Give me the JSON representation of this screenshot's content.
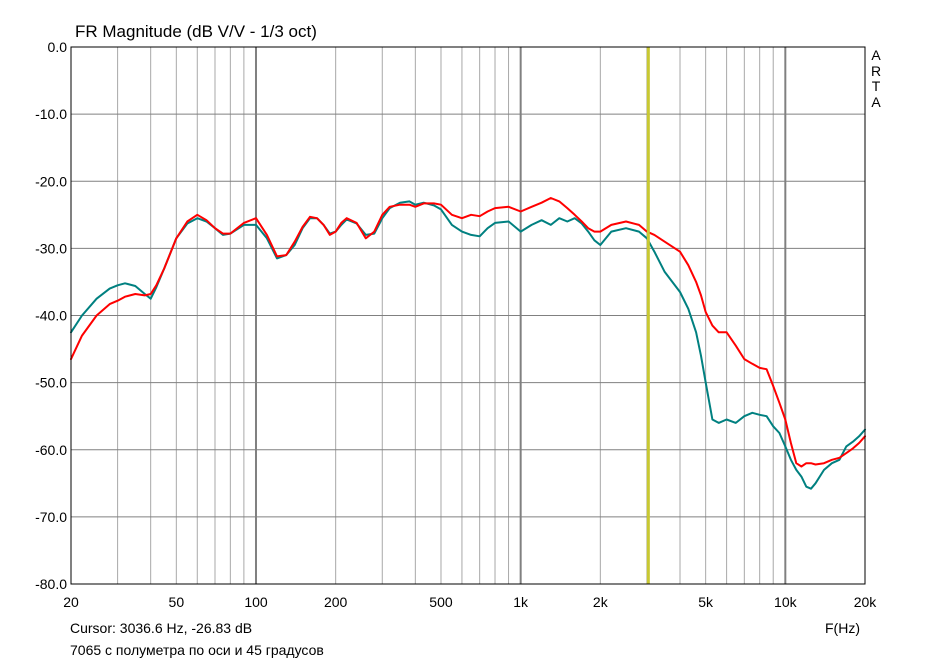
{
  "chart_data": {
    "type": "line",
    "title": "FR Magnitude (dB V/V - 1/3 oct)",
    "xlabel": "F(Hz)",
    "x_scale": "log",
    "xlim": [
      20,
      20000
    ],
    "ylim": [
      -80,
      0
    ],
    "grid": true,
    "x_tick_labels": [
      {
        "value": 20,
        "label": "20"
      },
      {
        "value": 50,
        "label": "50"
      },
      {
        "value": 100,
        "label": "100"
      },
      {
        "value": 200,
        "label": "200"
      },
      {
        "value": 500,
        "label": "500"
      },
      {
        "value": 1000,
        "label": "1k"
      },
      {
        "value": 2000,
        "label": "2k"
      },
      {
        "value": 5000,
        "label": "5k"
      },
      {
        "value": 10000,
        "label": "10k"
      },
      {
        "value": 20000,
        "label": "20k"
      }
    ],
    "y_tick_labels": [
      {
        "value": 0,
        "label": "0.0"
      },
      {
        "value": -10,
        "label": "-10.0"
      },
      {
        "value": -20,
        "label": "-20.0"
      },
      {
        "value": -30,
        "label": "-30.0"
      },
      {
        "value": -40,
        "label": "-40.0"
      },
      {
        "value": -50,
        "label": "-50.0"
      },
      {
        "value": -60,
        "label": "-60.0"
      },
      {
        "value": -70,
        "label": "-70.0"
      },
      {
        "value": -80,
        "label": "-80.0"
      }
    ],
    "cursor_x": 3036.6,
    "series": [
      {
        "color": "#008080",
        "x": [
          20,
          22,
          25,
          28,
          30,
          32,
          35,
          38,
          40,
          42,
          45,
          50,
          55,
          60,
          65,
          70,
          75,
          80,
          90,
          100,
          110,
          120,
          130,
          140,
          150,
          160,
          170,
          180,
          190,
          200,
          210,
          220,
          240,
          260,
          280,
          300,
          320,
          350,
          380,
          400,
          430,
          470,
          500,
          550,
          600,
          650,
          700,
          750,
          800,
          900,
          1000,
          1100,
          1200,
          1300,
          1400,
          1500,
          1600,
          1700,
          1800,
          1900,
          2000,
          2200,
          2500,
          2800,
          3000,
          3200,
          3500,
          4000,
          4300,
          4600,
          4800,
          5000,
          5300,
          5600,
          6000,
          6500,
          7000,
          7500,
          8000,
          8500,
          9000,
          9500,
          10000,
          10500,
          11000,
          11500,
          12000,
          12500,
          13000,
          14000,
          15000,
          16000,
          17000,
          18000,
          19000,
          20000
        ],
        "y": [
          -42.5,
          -40.0,
          -37.5,
          -36.0,
          -35.5,
          -35.2,
          -35.6,
          -36.8,
          -37.5,
          -35.8,
          -33.0,
          -28.5,
          -26.3,
          -25.5,
          -26.0,
          -27.0,
          -28.0,
          -27.8,
          -26.5,
          -26.5,
          -28.5,
          -31.5,
          -31.0,
          -29.5,
          -27.0,
          -25.5,
          -25.5,
          -26.5,
          -27.8,
          -27.5,
          -26.5,
          -25.7,
          -26.3,
          -28.0,
          -27.8,
          -25.5,
          -24.0,
          -23.2,
          -23.0,
          -23.5,
          -23.2,
          -23.6,
          -24.2,
          -26.5,
          -27.5,
          -28.0,
          -28.2,
          -27.0,
          -26.2,
          -26.0,
          -27.5,
          -26.5,
          -25.8,
          -26.5,
          -25.5,
          -26.0,
          -25.5,
          -26.3,
          -27.5,
          -28.8,
          -29.5,
          -27.5,
          -27.0,
          -27.5,
          -28.5,
          -30.5,
          -33.5,
          -36.5,
          -39.0,
          -42.5,
          -46.0,
          -50.0,
          -55.5,
          -56.0,
          -55.5,
          -56.0,
          -55.0,
          -54.5,
          -54.8,
          -55.0,
          -56.5,
          -57.5,
          -59.5,
          -61.5,
          -63.0,
          -64.0,
          -65.5,
          -65.8,
          -65.0,
          -63.0,
          -62.0,
          -61.5,
          -59.5,
          -58.8,
          -58.0,
          -57.0
        ]
      },
      {
        "color": "#ff0000",
        "x": [
          20,
          22,
          25,
          28,
          30,
          32,
          35,
          38,
          40,
          42,
          45,
          50,
          55,
          60,
          65,
          70,
          75,
          80,
          90,
          100,
          110,
          120,
          130,
          140,
          150,
          160,
          170,
          180,
          190,
          200,
          210,
          220,
          240,
          260,
          280,
          300,
          320,
          350,
          380,
          400,
          430,
          470,
          500,
          550,
          600,
          650,
          700,
          750,
          800,
          900,
          1000,
          1100,
          1200,
          1300,
          1400,
          1500,
          1600,
          1700,
          1800,
          1900,
          2000,
          2200,
          2500,
          2800,
          3000,
          3200,
          3500,
          4000,
          4300,
          4600,
          4800,
          5000,
          5300,
          5600,
          6000,
          6500,
          7000,
          7500,
          8000,
          8500,
          9000,
          9500,
          10000,
          10500,
          11000,
          11500,
          12000,
          12500,
          13000,
          14000,
          15000,
          16000,
          17000,
          18000,
          19000,
          20000
        ],
        "y": [
          -46.5,
          -43.0,
          -40.0,
          -38.3,
          -37.8,
          -37.2,
          -36.8,
          -37.0,
          -36.8,
          -35.5,
          -33.0,
          -28.5,
          -26.0,
          -25.0,
          -25.8,
          -27.0,
          -27.8,
          -27.8,
          -26.2,
          -25.5,
          -28.0,
          -31.2,
          -31.0,
          -29.0,
          -26.8,
          -25.3,
          -25.5,
          -26.5,
          -28.0,
          -27.5,
          -26.2,
          -25.5,
          -26.2,
          -28.5,
          -27.5,
          -25.0,
          -23.8,
          -23.5,
          -23.5,
          -23.8,
          -23.3,
          -23.3,
          -23.5,
          -25.0,
          -25.5,
          -25.0,
          -25.2,
          -24.5,
          -24.0,
          -23.8,
          -24.5,
          -23.8,
          -23.2,
          -22.5,
          -23.0,
          -24.0,
          -25.0,
          -26.0,
          -27.0,
          -27.5,
          -27.5,
          -26.5,
          -26.0,
          -26.5,
          -27.5,
          -28.0,
          -29.0,
          -30.5,
          -32.5,
          -35.0,
          -37.0,
          -39.5,
          -41.5,
          -42.5,
          -42.5,
          -44.5,
          -46.5,
          -47.2,
          -47.8,
          -48.0,
          -50.5,
          -53.0,
          -55.5,
          -59.0,
          -62.0,
          -62.5,
          -62.0,
          -62.0,
          -62.2,
          -62.0,
          -61.5,
          -61.2,
          -60.5,
          -59.8,
          -59.0,
          -58.0
        ]
      }
    ]
  },
  "cursor_label": "Cursor: 3036.6 Hz, -26.83 dB",
  "note": "7065 с полуметра по оси и 45 градусов",
  "brand_letters": [
    "A",
    "R",
    "T",
    "A"
  ],
  "colors": {
    "grid": "#a8a8a8",
    "grid_major": "#808080",
    "cursor": "#c8c832",
    "frame": "#000000"
  }
}
